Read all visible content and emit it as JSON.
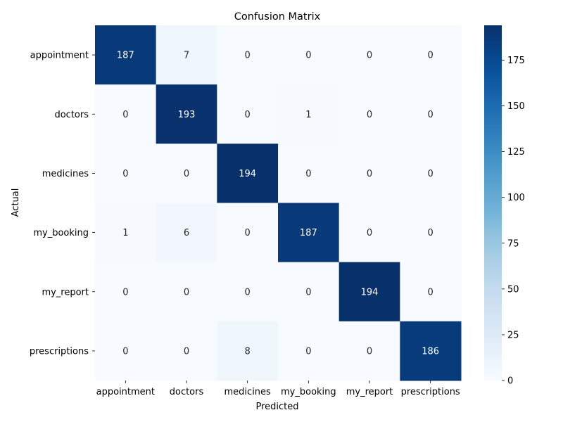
{
  "chart_data": {
    "type": "heatmap",
    "title": "Confusion Matrix",
    "xlabel": "Predicted",
    "ylabel": "Actual",
    "x_categories": [
      "appointment",
      "doctors",
      "medicines",
      "my_booking",
      "my_report",
      "prescriptions"
    ],
    "y_categories": [
      "appointment",
      "doctors",
      "medicines",
      "my_booking",
      "my_report",
      "prescriptions"
    ],
    "values": [
      [
        187,
        7,
        0,
        0,
        0,
        0
      ],
      [
        0,
        193,
        0,
        1,
        0,
        0
      ],
      [
        0,
        0,
        194,
        0,
        0,
        0
      ],
      [
        1,
        6,
        0,
        187,
        0,
        0
      ],
      [
        0,
        0,
        0,
        0,
        194,
        0
      ],
      [
        0,
        0,
        8,
        0,
        0,
        186
      ]
    ],
    "colorbar": {
      "min": 0,
      "max": 194,
      "ticks": [
        0,
        25,
        50,
        75,
        100,
        125,
        150,
        175
      ],
      "colormap": "Blues"
    },
    "colors": {
      "light_text": "#ffffff",
      "dark_text": "#262626",
      "axis": "#000000"
    }
  }
}
